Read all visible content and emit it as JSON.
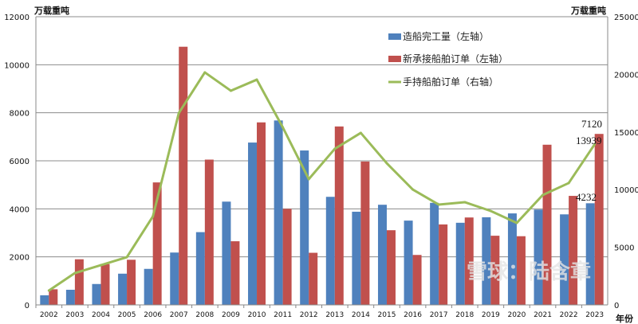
{
  "chart_data": {
    "type": "bar+line",
    "left_unit": "万载重吨",
    "right_unit": "万载重吨",
    "xlabel": "年份",
    "ylim_left": [
      0,
      12000
    ],
    "ylim_right": [
      0,
      25000
    ],
    "yticks_left": [
      0,
      2000,
      4000,
      6000,
      8000,
      10000,
      12000
    ],
    "yticks_right": [
      0,
      5000,
      10000,
      15000,
      20000,
      25000
    ],
    "grid": true,
    "legend_position": "top-right",
    "categories": [
      "2002",
      "2003",
      "2004",
      "2005",
      "2006",
      "2007",
      "2008",
      "2009",
      "2010",
      "2011",
      "2012",
      "2013",
      "2014",
      "2015",
      "2016",
      "2017",
      "2018",
      "2019",
      "2020",
      "2021",
      "2022",
      "2023"
    ],
    "series": [
      {
        "name": "造船完工量（左轴）",
        "type": "bar",
        "axis": "left",
        "color": "#4f81bd",
        "values": [
          400,
          630,
          870,
          1300,
          1500,
          2180,
          3030,
          4300,
          6760,
          7680,
          6430,
          4500,
          3880,
          4170,
          3510,
          4250,
          3420,
          3650,
          3810,
          3970,
          3770,
          4232
        ]
      },
      {
        "name": "新承接船舶订单（左轴）",
        "type": "bar",
        "axis": "left",
        "color": "#c0504d",
        "values": [
          650,
          1900,
          1700,
          1880,
          5100,
          10750,
          6050,
          2650,
          7600,
          4000,
          2170,
          7430,
          5970,
          3110,
          2080,
          3350,
          3640,
          2880,
          2860,
          6670,
          4540,
          7120
        ]
      },
      {
        "name": "手持船舶订单（右轴）",
        "type": "line",
        "axis": "right",
        "color": "#9bbb59",
        "values": [
          1240,
          2760,
          3450,
          4140,
          7670,
          16650,
          20170,
          18580,
          19540,
          15400,
          10910,
          13540,
          14920,
          12290,
          10010,
          8700,
          8910,
          8150,
          7110,
          9530,
          10570,
          13939
        ]
      }
    ],
    "data_labels": [
      "7120",
      "13939",
      "4232"
    ],
    "watermark": "雪球：陆含章"
  }
}
